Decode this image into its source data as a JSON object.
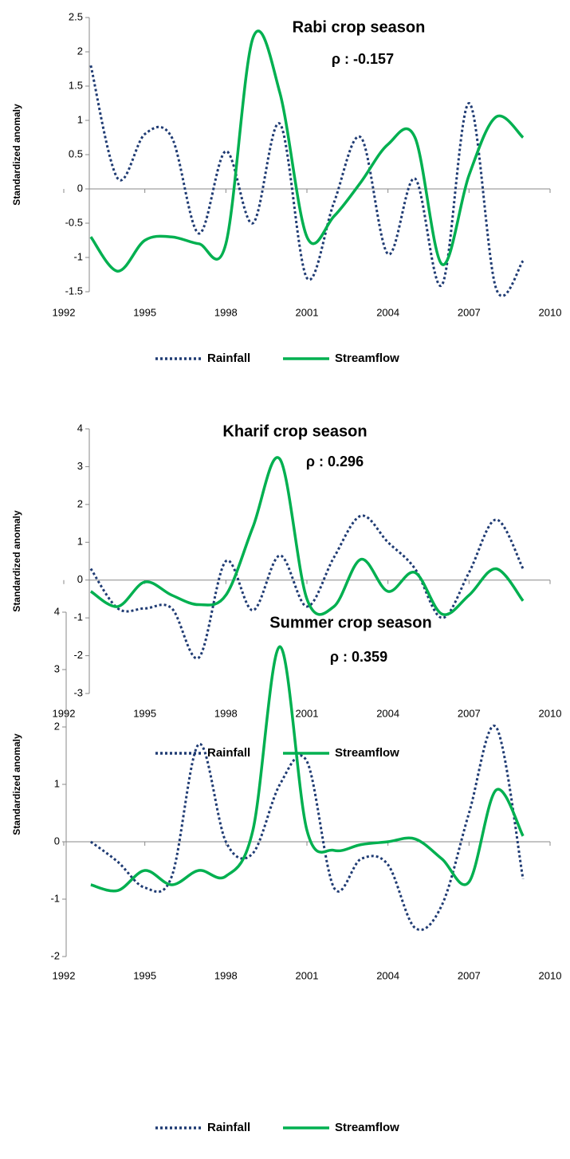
{
  "chart_data": [
    {
      "type": "line",
      "title": "Rabi crop season",
      "annotation": "ρ : -0.157",
      "y_label": "Standardized anomaly",
      "x": [
        1993,
        1994,
        1995,
        1996,
        1997,
        1998,
        1999,
        2000,
        2001,
        2002,
        2003,
        2004,
        2005,
        2006,
        2007,
        2008,
        2009
      ],
      "series": [
        {
          "name": "Rainfall",
          "color": "#1f3b73",
          "style": "dotted",
          "values": [
            1.8,
            0.15,
            0.8,
            0.75,
            -0.65,
            0.55,
            -0.5,
            0.95,
            -1.3,
            -0.2,
            0.75,
            -0.95,
            0.15,
            -1.4,
            1.25,
            -1.45,
            -1.05
          ]
        },
        {
          "name": "Streamflow",
          "color": "#00b050",
          "style": "solid",
          "values": [
            -0.7,
            -1.2,
            -0.75,
            -0.7,
            -0.8,
            -0.8,
            2.2,
            1.4,
            -0.7,
            -0.4,
            0.1,
            0.65,
            0.75,
            -1.1,
            0.2,
            1.05,
            0.75
          ]
        }
      ],
      "xlim": [
        1992,
        2010
      ],
      "xticks": [
        1992,
        1995,
        1998,
        2001,
        2004,
        2007,
        2010
      ],
      "ylim": [
        -1.5,
        2.5
      ],
      "yticks": [
        -1.5,
        -1,
        -0.5,
        0,
        0.5,
        1,
        1.5,
        2,
        2.5
      ],
      "legend": "bottom"
    },
    {
      "type": "line",
      "title": "Kharif crop season",
      "annotation": "ρ : 0.296",
      "y_label": "Standardized anomaly",
      "x": [
        1993,
        1994,
        1995,
        1996,
        1997,
        1998,
        1999,
        2000,
        2001,
        2002,
        2003,
        2004,
        2005,
        2006,
        2007,
        2008,
        2009
      ],
      "series": [
        {
          "name": "Rainfall",
          "color": "#1f3b73",
          "style": "dotted",
          "values": [
            0.3,
            -0.75,
            -0.75,
            -0.75,
            -2.05,
            0.5,
            -0.8,
            0.65,
            -0.7,
            0.6,
            1.7,
            1.0,
            0.3,
            -1.0,
            0.2,
            1.6,
            0.3
          ]
        },
        {
          "name": "Streamflow",
          "color": "#00b050",
          "style": "solid",
          "values": [
            -0.3,
            -0.7,
            -0.05,
            -0.4,
            -0.65,
            -0.4,
            1.4,
            3.2,
            -0.5,
            -0.7,
            0.55,
            -0.3,
            0.2,
            -0.9,
            -0.4,
            0.3,
            -0.55
          ]
        }
      ],
      "xlim": [
        1992,
        2010
      ],
      "xticks": [
        1992,
        1995,
        1998,
        2001,
        2004,
        2007,
        2010
      ],
      "ylim": [
        -3,
        4
      ],
      "yticks": [
        -3,
        -2,
        -1,
        0,
        1,
        2,
        3,
        4
      ],
      "legend": "bottom"
    },
    {
      "type": "line",
      "title": "Summer crop season",
      "annotation": "ρ : 0.359",
      "y_label": "Standardized anomaly",
      "x": [
        1993,
        1994,
        1995,
        1996,
        1997,
        1998,
        1999,
        2000,
        2001,
        2002,
        2003,
        2004,
        2005,
        2006,
        2007,
        2008,
        2009
      ],
      "series": [
        {
          "name": "Rainfall",
          "color": "#1f3b73",
          "style": "dotted",
          "values": [
            0,
            -0.35,
            -0.8,
            -0.6,
            1.7,
            0,
            -0.2,
            1.0,
            1.4,
            -0.8,
            -0.3,
            -0.4,
            -1.5,
            -1.1,
            0.5,
            2.0,
            -0.65
          ]
        },
        {
          "name": "Streamflow",
          "color": "#00b050",
          "style": "solid",
          "values": [
            -0.75,
            -0.85,
            -0.5,
            -0.75,
            -0.5,
            -0.6,
            0.2,
            3.4,
            0.2,
            -0.15,
            -0.05,
            0,
            0.05,
            -0.3,
            -0.7,
            0.9,
            0.1
          ]
        }
      ],
      "xlim": [
        1992,
        2010
      ],
      "xticks": [
        1992,
        1995,
        1998,
        2001,
        2004,
        2007,
        2010
      ],
      "ylim": [
        -2,
        4
      ],
      "yticks": [
        -2,
        -1,
        0,
        1,
        2,
        3,
        4
      ],
      "legend": "bottom"
    }
  ]
}
